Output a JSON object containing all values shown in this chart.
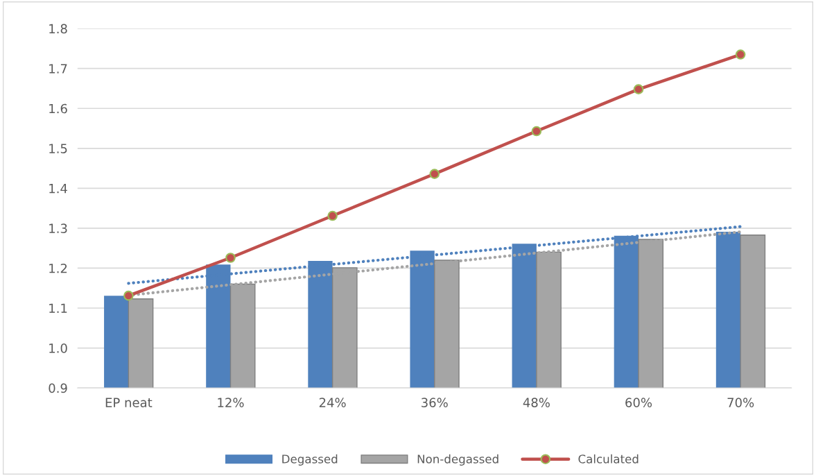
{
  "chart_data": {
    "type": "bar",
    "categories": [
      "EP neat",
      "12%",
      "24%",
      "36%",
      "48%",
      "60%",
      "70%"
    ],
    "series": [
      {
        "name": "Degassed",
        "color": "#4f81bd",
        "values": [
          1.131,
          1.209,
          1.218,
          1.244,
          1.261,
          1.281,
          1.291
        ]
      },
      {
        "name": "Non-degassed",
        "color": "#a5a5a5",
        "values": [
          1.123,
          1.16,
          1.201,
          1.22,
          1.24,
          1.272,
          1.283
        ]
      },
      {
        "name": "Calculated",
        "type": "line",
        "color": "#c0504d",
        "marker": "circle",
        "line_style": "solid",
        "values": [
          1.131,
          1.226,
          1.331,
          1.436,
          1.543,
          1.648,
          1.735
        ]
      },
      {
        "type": "line",
        "color": "#4f81bd",
        "line_style": "dotted",
        "marker": "none",
        "x": [
          "EP neat",
          "70%"
        ],
        "values": [
          1.162,
          1.304
        ]
      },
      {
        "type": "line",
        "color": "#a5a5a5",
        "line_style": "dotted",
        "marker": "none",
        "x": [
          "EP neat",
          "70%"
        ],
        "values": [
          1.132,
          1.291
        ]
      }
    ],
    "ylim": [
      0.9,
      1.8
    ],
    "yticks": [
      {
        "value": 0.9,
        "label": "0.9"
      },
      {
        "value": 1.0,
        "label": "1.0"
      },
      {
        "value": 1.1,
        "label": "1.1"
      },
      {
        "value": 1.2,
        "label": "1.2"
      },
      {
        "value": 1.3,
        "label": "1.3"
      },
      {
        "value": 1.4,
        "label": "1.4"
      },
      {
        "value": 1.5,
        "label": "1.5"
      },
      {
        "value": 1.6,
        "label": "1.6"
      },
      {
        "value": 1.7,
        "label": "1.7"
      },
      {
        "value": 1.8,
        "label": "1.8"
      }
    ],
    "grid": "y",
    "legend": "bottom"
  }
}
